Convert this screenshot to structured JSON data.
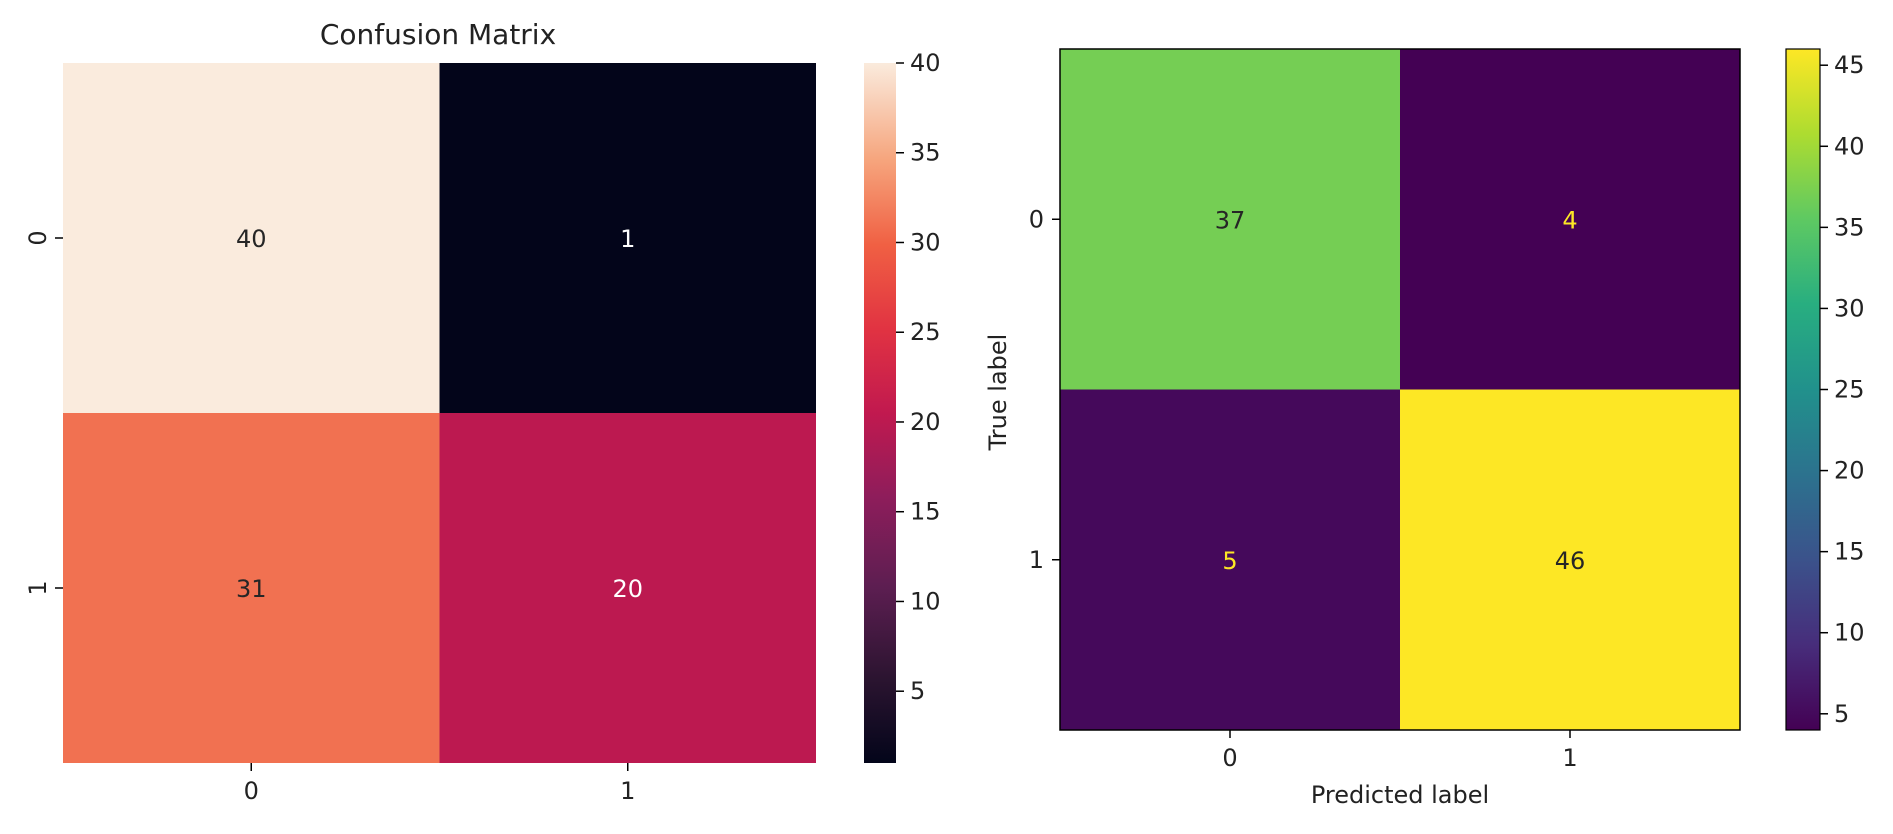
{
  "chart_data": [
    {
      "type": "heatmap",
      "title": "Confusion Matrix",
      "xlabel": "",
      "ylabel": "",
      "x_categories": [
        "0",
        "1"
      ],
      "y_categories": [
        "0",
        "1"
      ],
      "values": [
        [
          40,
          1
        ],
        [
          31,
          20
        ]
      ],
      "colormap": "rocket",
      "colorbar": {
        "min": 1,
        "max": 40,
        "ticks": [
          "5",
          "10",
          "15",
          "20",
          "25",
          "30",
          "35",
          "40"
        ]
      },
      "grid": false,
      "legend": "colorbar-right"
    },
    {
      "type": "heatmap",
      "title": "",
      "xlabel": "Predicted label",
      "ylabel": "True label",
      "x_categories": [
        "0",
        "1"
      ],
      "y_categories": [
        "0",
        "1"
      ],
      "values": [
        [
          37,
          4
        ],
        [
          5,
          46
        ]
      ],
      "colormap": "viridis",
      "colorbar": {
        "min": 4,
        "max": 46,
        "ticks": [
          "5",
          "10",
          "15",
          "20",
          "25",
          "30",
          "35",
          "40",
          "45"
        ]
      },
      "grid": false,
      "legend": "colorbar-right"
    }
  ]
}
